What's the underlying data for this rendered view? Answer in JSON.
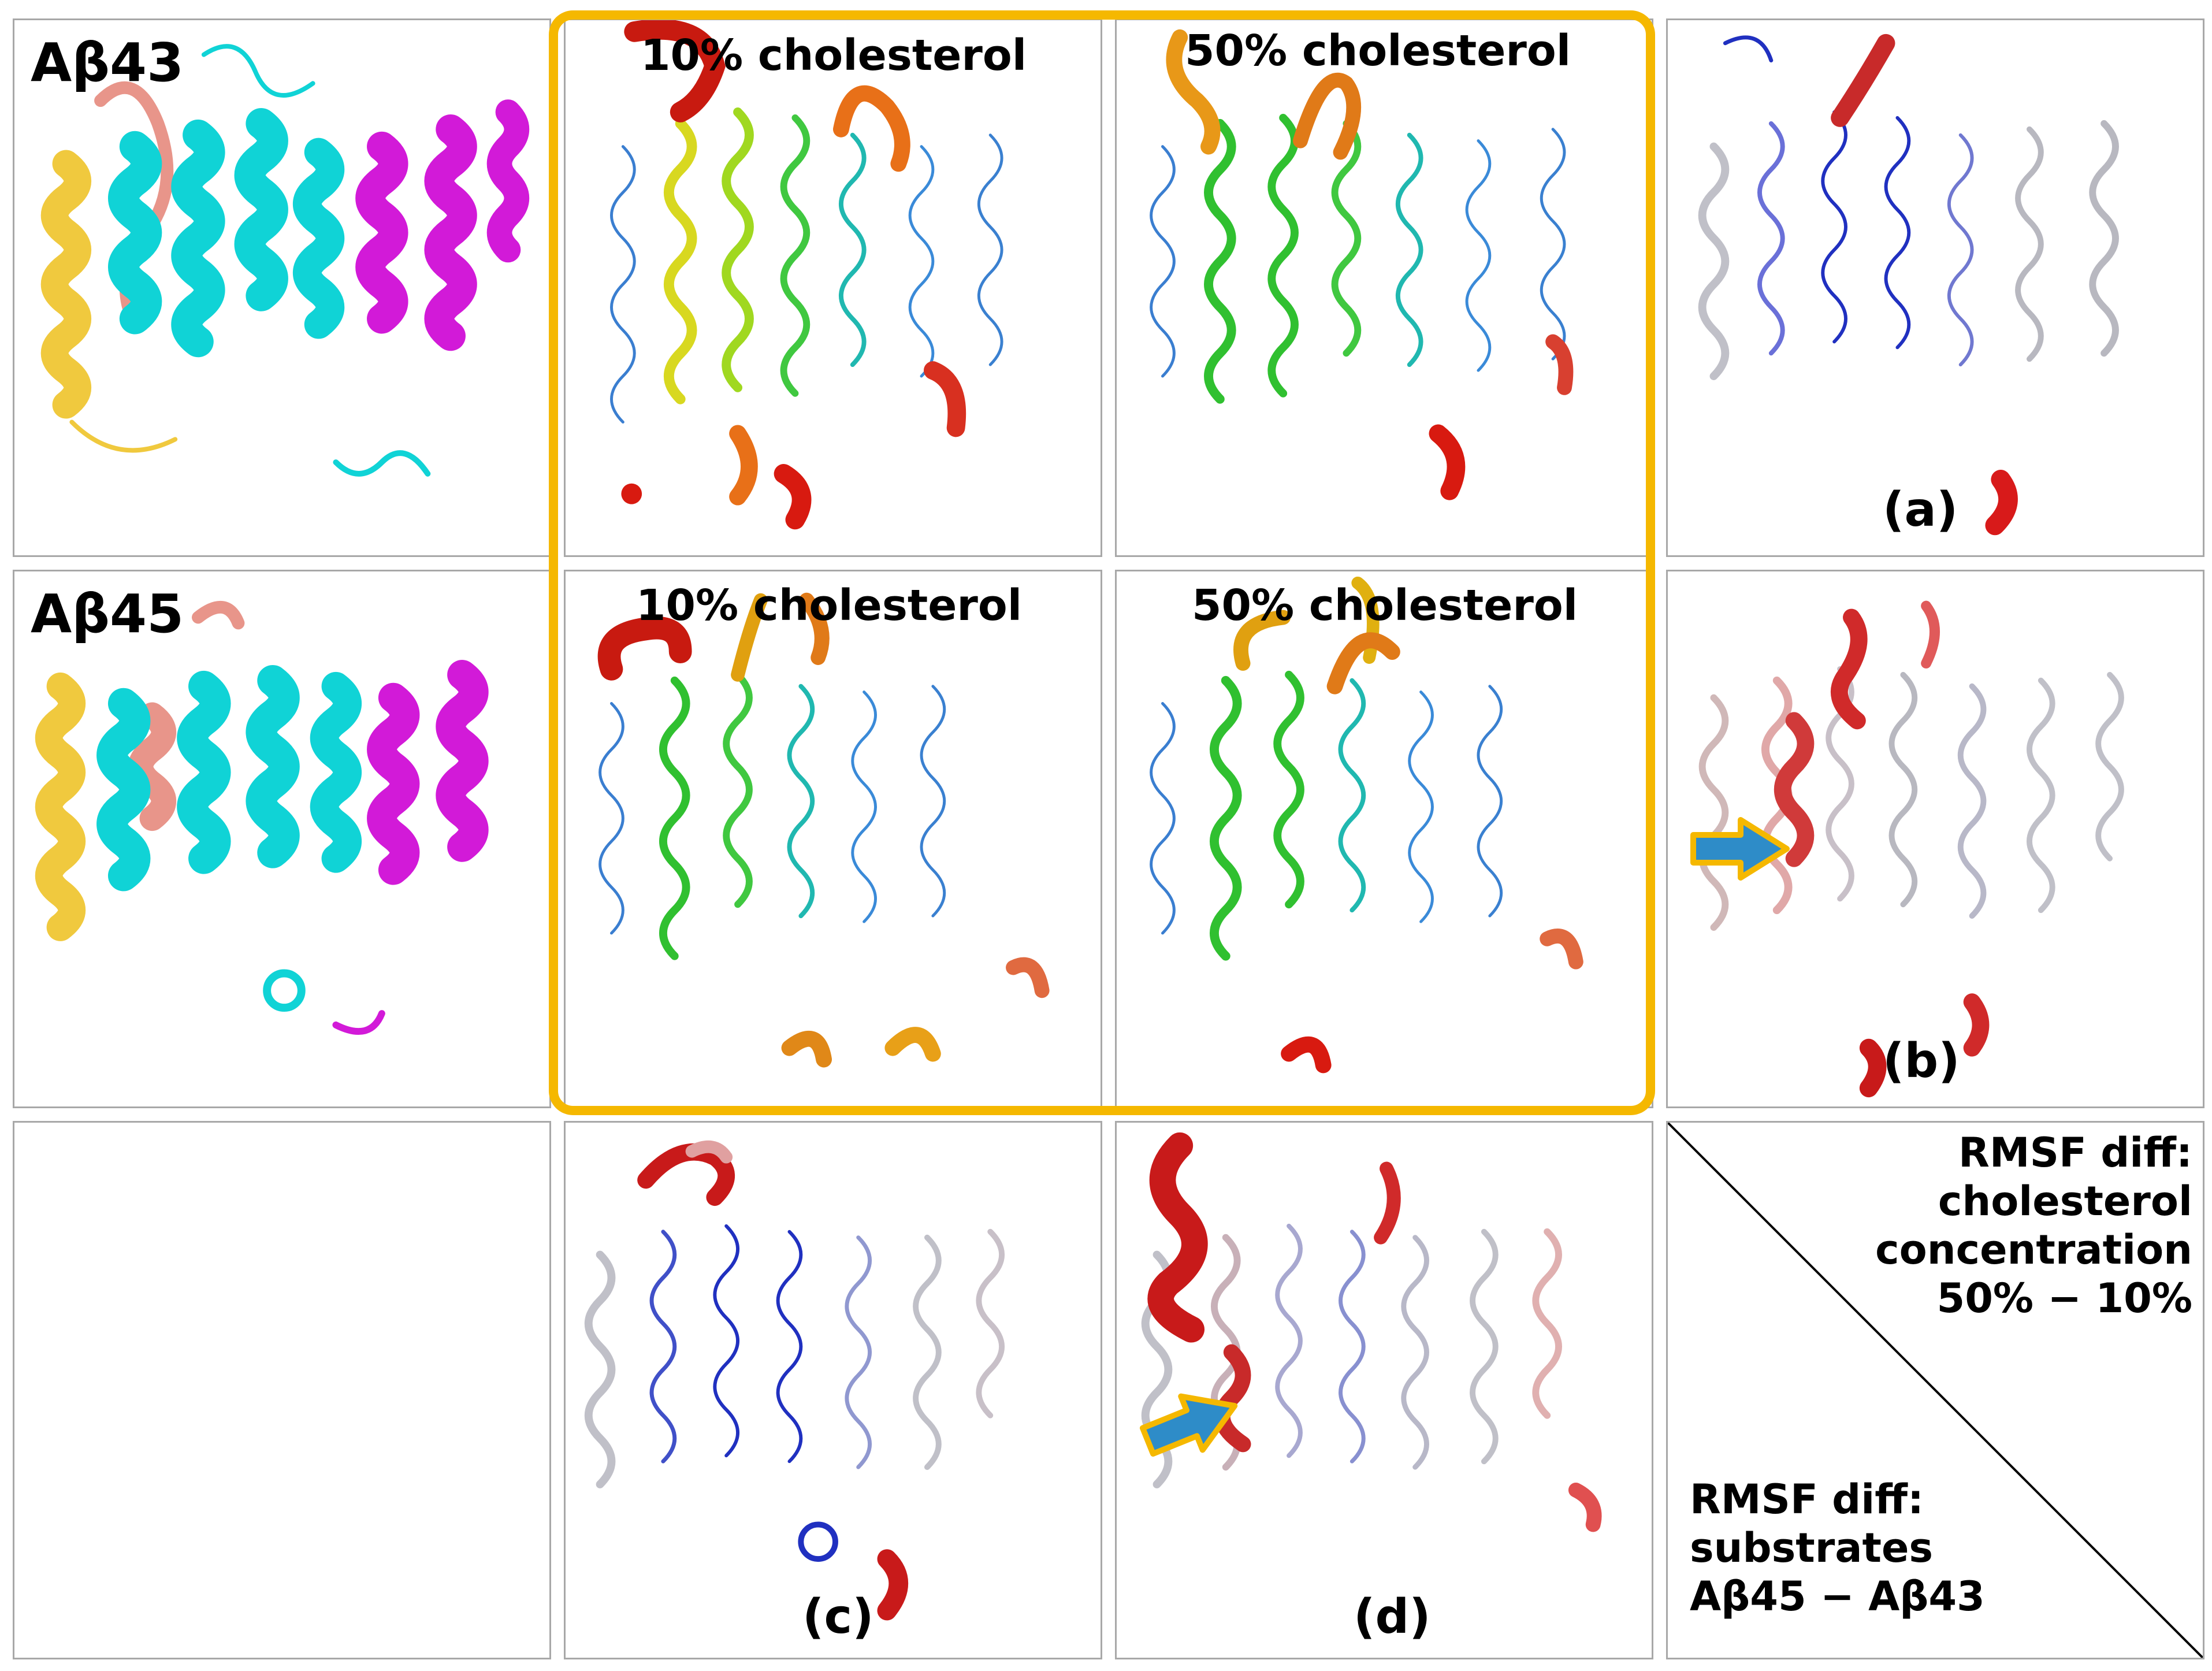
{
  "rows": {
    "row1_label": "Aβ43",
    "row2_label": "Aβ45"
  },
  "titles": {
    "r1c2": "10% cholesterol",
    "r1c3": "50% cholesterol",
    "r2c2": "10% cholesterol",
    "r2c3": "50% cholesterol"
  },
  "panel_letters": {
    "a": "(a)",
    "b": "(b)",
    "c": "(c)",
    "d": "(d)"
  },
  "legend": {
    "cholesterol_lines": [
      "RMSF diff:",
      "cholesterol",
      "concentration",
      "50% − 10%"
    ],
    "substrate_lines": [
      "RMSF diff:",
      "substrates",
      "Aβ45 − Aβ43"
    ]
  },
  "colors": {
    "highlight": "#f5b800",
    "arrow_fill": "#2e8cc8",
    "subunit_yellow": "#f0c93e",
    "subunit_cyan": "#10d3d6",
    "subunit_magenta": "#d21ad8",
    "subunit_salmon": "#e8958a",
    "rmsf_diff_high": "#d82020",
    "rmsf_diff_low": "#2030c0"
  }
}
